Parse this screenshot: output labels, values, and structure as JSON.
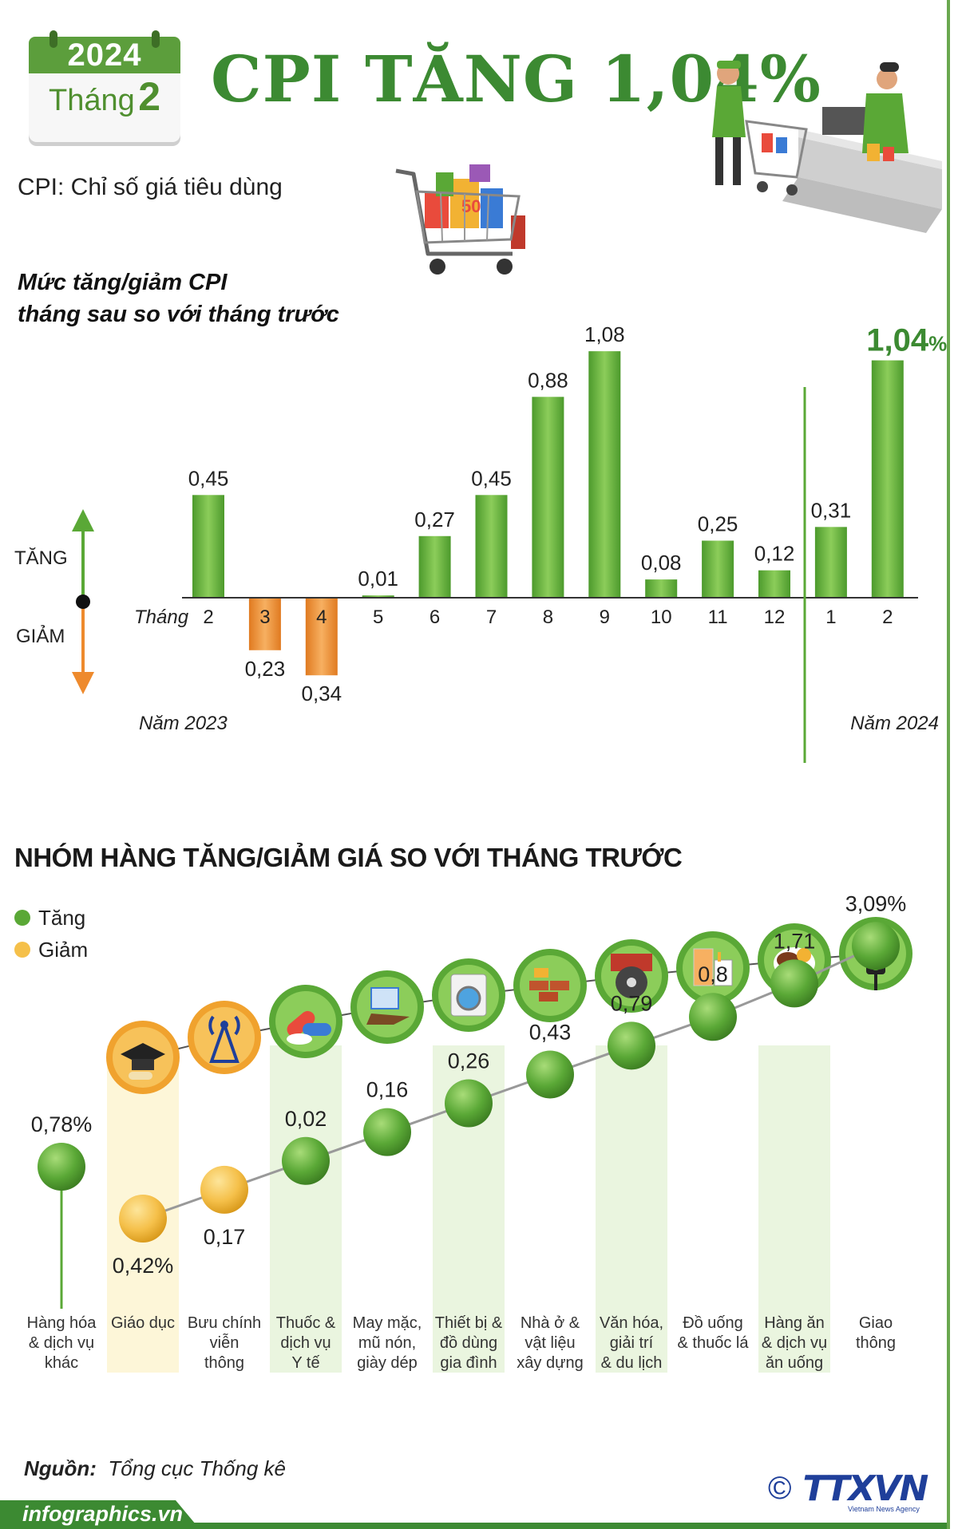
{
  "calendar": {
    "year": "2024",
    "month_label": "Tháng",
    "month_number": "2"
  },
  "title": "CPI TĂNG 1,04%",
  "cpi_definition": "CPI: Chỉ số giá tiêu dùng",
  "chart_subtitle_line1": "Mức tăng/giảm CPI",
  "chart_subtitle_line2": "tháng sau so với tháng trước",
  "axis_words": {
    "increase": "TĂNG",
    "decrease": "GIẢM",
    "month": "Tháng"
  },
  "colors": {
    "green": "#5aa836",
    "orange": "#ee8a2d",
    "accent": "#3c8a32",
    "brand_blue": "#1f3f9a"
  },
  "section2_title": "NHÓM HÀNG TĂNG/GIẢM GIÁ SO VỚI THÁNG TRƯỚC",
  "legend": {
    "increase": "Tăng",
    "decrease": "Giảm"
  },
  "source_label": "Nguồn:",
  "source_value": "Tổng cục Thống kê",
  "website": "infographics.vn",
  "agency_logo": "TTXVN",
  "agency_sub": "Vietnam News Agency",
  "copyright": "©",
  "icons": [
    "shopping-cart-icon",
    "cashier-scene-icon",
    "graduation-cap-icon",
    "antenna-tower-icon",
    "medicine-pills-icon",
    "clothes-shoes-icon",
    "washing-machine-icon",
    "bricks-tools-icon",
    "film-reel-icon",
    "drinks-cigarettes-icon",
    "food-plate-icon",
    "traffic-light-icon"
  ],
  "chart_data": [
    {
      "type": "bar",
      "title": "Mức tăng/giảm CPI tháng sau so với tháng trước",
      "unit": "%",
      "categories": [
        "2",
        "3",
        "4",
        "5",
        "6",
        "7",
        "8",
        "9",
        "10",
        "11",
        "12",
        "1",
        "2"
      ],
      "values": [
        0.45,
        -0.23,
        -0.34,
        0.01,
        0.27,
        0.45,
        0.88,
        1.08,
        0.08,
        0.25,
        0.12,
        0.31,
        1.04
      ],
      "value_labels": [
        "0,45",
        "0,23",
        "0,34",
        "0,01",
        "0,27",
        "0,45",
        "0,88",
        "1,08",
        "0,08",
        "0,25",
        "0,12",
        "0,31",
        "1,04"
      ],
      "highlight_label_suffix": "%",
      "year_groups": [
        {
          "label": "Năm 2023",
          "months": [
            "2",
            "3",
            "4",
            "5",
            "6",
            "7",
            "8",
            "9",
            "10",
            "11",
            "12"
          ]
        },
        {
          "label": "Năm 2024",
          "months": [
            "1",
            "2"
          ]
        }
      ]
    },
    {
      "type": "scatter",
      "title": "NHÓM HÀNG TĂNG/GIẢM GIÁ SO VỚI THÁNG TRƯỚC",
      "unit": "%",
      "categories": [
        "Hàng hóa & dịch vụ khác",
        "Giáo dục",
        "Bưu chính viễn thông",
        "Thuốc & dịch vụ Y tế",
        "May mặc, mũ nón, giày dép",
        "Thiết bị & đồ dùng gia đình",
        "Nhà ở & vật liệu xây dựng",
        "Văn hóa, giải trí & du lịch",
        "Đồ uống & thuốc lá",
        "Hàng ăn & dịch vụ ăn uống",
        "Giao thông"
      ],
      "category_lines": [
        [
          "Hàng hóa",
          "& dịch vụ",
          "khác"
        ],
        [
          "Giáo dục"
        ],
        [
          "Bưu chính",
          "viễn",
          "thông"
        ],
        [
          "Thuốc &",
          "dịch vụ",
          "Y tế"
        ],
        [
          "May mặc,",
          "mũ nón,",
          "giày dép"
        ],
        [
          "Thiết bị &",
          "đồ dùng",
          "gia đình"
        ],
        [
          "Nhà ở &",
          "vật liệu",
          "xây dựng"
        ],
        [
          "Văn hóa,",
          "giải trí",
          "& du lịch"
        ],
        [
          "Đồ uống",
          "& thuốc lá"
        ],
        [
          "Hàng ăn",
          "& dịch vụ",
          "ăn uống"
        ],
        [
          "Giao",
          "thông"
        ]
      ],
      "values": [
        0.78,
        -0.42,
        -0.17,
        0.02,
        0.16,
        0.26,
        0.43,
        0.79,
        0.8,
        1.71,
        3.09
      ],
      "value_labels": [
        "0,78%",
        "0,42%",
        "0,17",
        "0,02",
        "0,16",
        "0,26",
        "0,43",
        "0,79",
        "0,8",
        "1,71",
        "3,09%"
      ]
    }
  ]
}
